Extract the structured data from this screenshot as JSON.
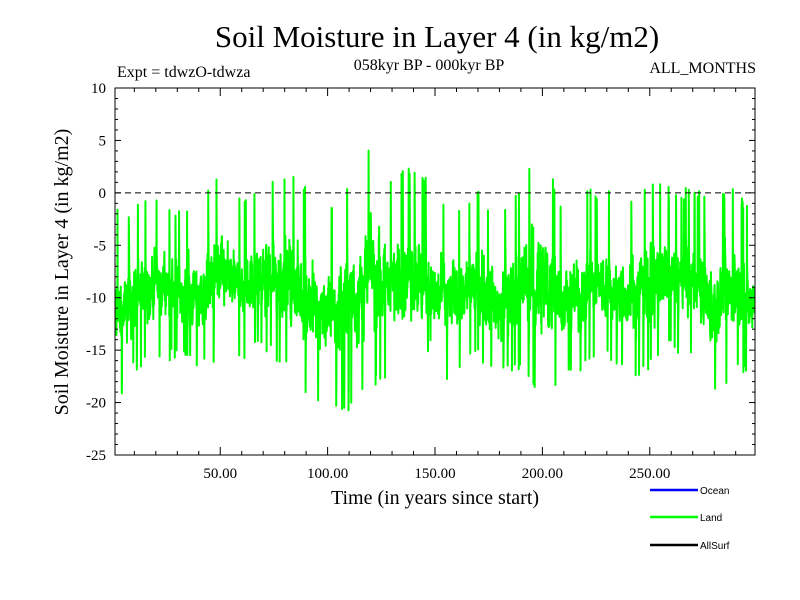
{
  "header": {
    "title": "Soil Moisture in Layer 4 (in kg/m2)",
    "expt": "Expt = tdwzO-tdwza",
    "period": "058kyr BP - 000kyr BP",
    "months": "ALL_MONTHS"
  },
  "colors": {
    "land": "#00ff00",
    "ocean": "#0000ff",
    "allsurf": "#000000",
    "zero_line": "#000000"
  },
  "chart_data": {
    "type": "line",
    "title": "Soil Moisture in Layer 4 (in kg/m2)",
    "xlabel": "Time (in years since start)",
    "ylabel": "Soil Moisture in Layer 4 (in kg/m2)",
    "xlim": [
      1,
      299
    ],
    "ylim": [
      -25,
      10
    ],
    "x_ticks": [
      {
        "value": 50,
        "label": "50.00"
      },
      {
        "value": 100,
        "label": "100.00"
      },
      {
        "value": 150,
        "label": "150.00"
      },
      {
        "value": 200,
        "label": "200.00"
      },
      {
        "value": 250,
        "label": "250.00"
      }
    ],
    "y_ticks": [
      {
        "value": 10,
        "label": "10"
      },
      {
        "value": 5,
        "label": "5"
      },
      {
        "value": 0,
        "label": "0"
      },
      {
        "value": -5,
        "label": "-5"
      },
      {
        "value": -10,
        "label": "-10"
      },
      {
        "value": -15,
        "label": "-15"
      },
      {
        "value": -20,
        "label": "-20"
      },
      {
        "value": -25,
        "label": "-25"
      }
    ],
    "reference_line": {
      "y": 0,
      "style": "dashed"
    },
    "legend": {
      "placement": "bottom-right",
      "entries": [
        "Ocean",
        "Land",
        "AllSurf"
      ]
    },
    "series": [
      {
        "name": "Land",
        "color": "#00ff00",
        "samples_per_year": 12,
        "summary": {
          "typical_range": [
            -15,
            -5
          ],
          "approx_mean": -9.5,
          "approx_max": 5.8,
          "approx_min": -21
        },
        "envelope": {
          "x": [
            1,
            10,
            20,
            30,
            40,
            50,
            60,
            70,
            80,
            90,
            100,
            110,
            120,
            130,
            140,
            150,
            160,
            170,
            180,
            190,
            200,
            210,
            220,
            230,
            240,
            250,
            260,
            270,
            280,
            290,
            299
          ],
          "max": [
            -1.5,
            -1,
            0.5,
            -1.5,
            -0.5,
            2,
            -0.5,
            0.5,
            2.5,
            1,
            -1.5,
            1,
            5.5,
            1.5,
            3,
            0.5,
            -1,
            0.5,
            -2.5,
            1.5,
            5.8,
            -2.5,
            0.5,
            0.5,
            -1,
            1.5,
            0.5,
            0.5,
            -0.5,
            0.5,
            -1.5
          ],
          "min": [
            -21,
            -17,
            -16,
            -16,
            -17,
            -16,
            -16,
            -15,
            -17,
            -20,
            -20,
            -21,
            -19,
            -17,
            -17,
            -19,
            -17,
            -16,
            -18,
            -17,
            -20.5,
            -17,
            -17,
            -16,
            -18,
            -17,
            -15,
            -16,
            -20,
            -17,
            -18
          ]
        }
      }
    ]
  }
}
